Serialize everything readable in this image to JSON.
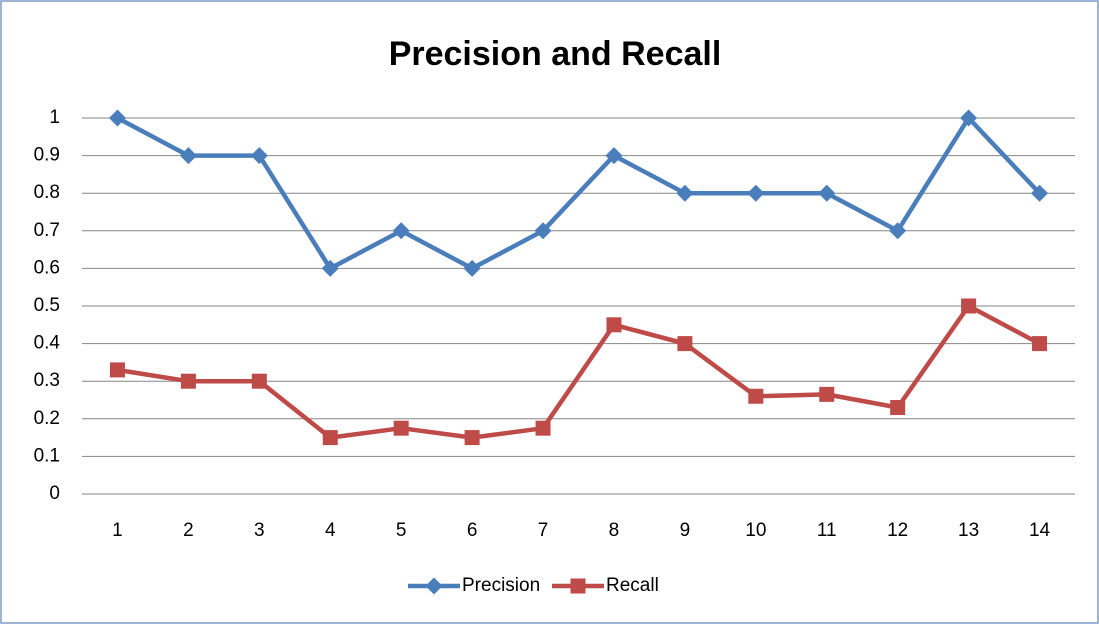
{
  "chart_data": {
    "type": "line",
    "title": "Precision and Recall",
    "categories": [
      "1",
      "2",
      "3",
      "4",
      "5",
      "6",
      "7",
      "8",
      "9",
      "10",
      "11",
      "12",
      "13",
      "14"
    ],
    "series": [
      {
        "name": "Precision",
        "color": "#4a7ebb",
        "marker": "diamond",
        "values": [
          1,
          0.9,
          0.9,
          0.6,
          0.7,
          0.6,
          0.7,
          0.9,
          0.8,
          0.8,
          0.8,
          0.7,
          1,
          0.8
        ]
      },
      {
        "name": "Recall",
        "color": "#be4b48",
        "marker": "square",
        "values": [
          0.33,
          0.3,
          0.3,
          0.15,
          0.175,
          0.15,
          0.175,
          0.45,
          0.4,
          0.26,
          0.265,
          0.23,
          0.5,
          0.4
        ]
      }
    ],
    "ylim": [
      0,
      1
    ],
    "yticks": [
      0,
      0.1,
      0.2,
      0.3,
      0.4,
      0.5,
      0.6,
      0.7,
      0.8,
      0.9,
      1
    ],
    "grid": true,
    "legend": "bottom"
  }
}
